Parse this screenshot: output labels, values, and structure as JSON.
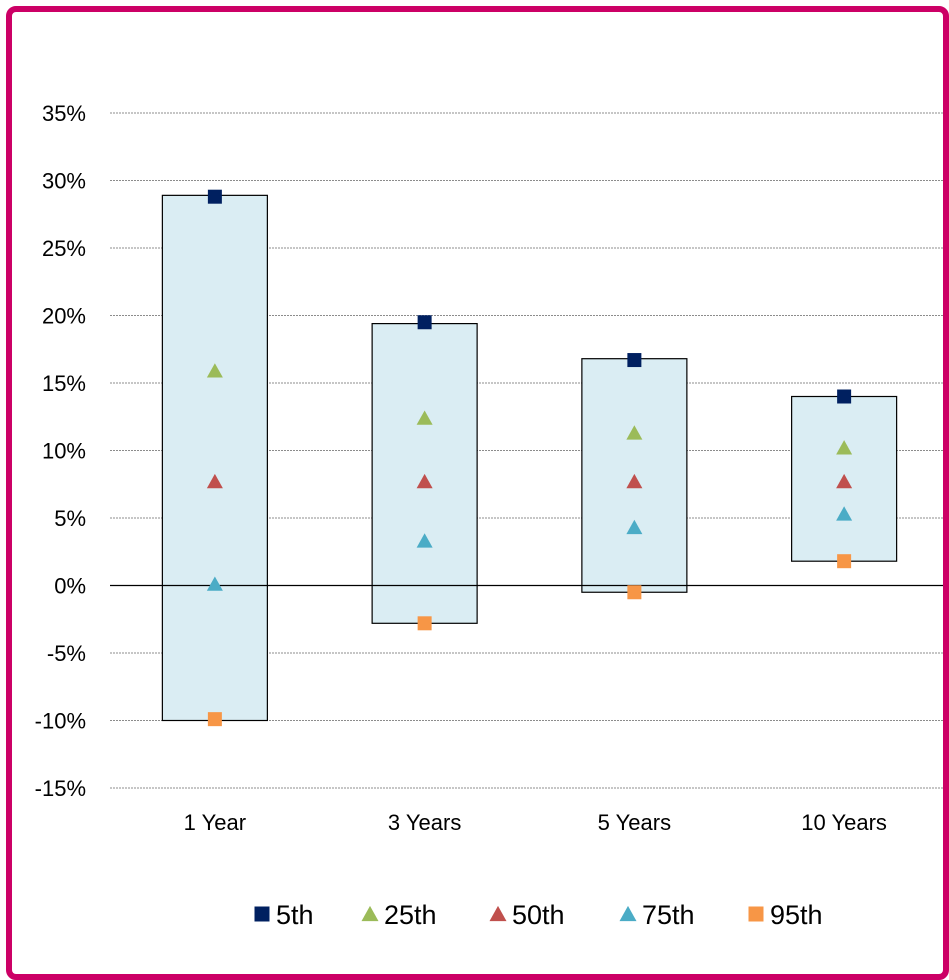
{
  "chart_data": {
    "type": "range-bar",
    "categories": [
      "1 Year",
      "3 Years",
      "5 Years",
      "10 Years"
    ],
    "y_ticks": [
      "35%",
      "30%",
      "25%",
      "20%",
      "15%",
      "10%",
      "5%",
      "0%",
      "-5%",
      "-10%",
      "-15%"
    ],
    "ylim": [
      -15,
      35
    ],
    "grid": true,
    "legend_position": "bottom",
    "bar_fill": "#daedf3",
    "series": [
      {
        "name": "5th",
        "marker": "square",
        "color": "#002060",
        "values": [
          28.8,
          19.5,
          16.7,
          14.0
        ]
      },
      {
        "name": "25th",
        "marker": "triangle",
        "color": "#9bbb59",
        "values": [
          15.9,
          12.4,
          11.3,
          10.2
        ]
      },
      {
        "name": "50th",
        "marker": "triangle",
        "color": "#c0504d",
        "values": [
          7.7,
          7.7,
          7.7,
          7.7
        ]
      },
      {
        "name": "75th",
        "marker": "triangle",
        "color": "#4bacc6",
        "values": [
          0.1,
          3.3,
          4.3,
          5.3
        ]
      },
      {
        "name": "95th",
        "marker": "square",
        "color": "#f79646",
        "values": [
          -9.9,
          -2.8,
          -0.5,
          1.8
        ]
      }
    ],
    "ranges": [
      {
        "high": 28.9,
        "low": -10.0
      },
      {
        "high": 19.4,
        "low": -2.8
      },
      {
        "high": 16.8,
        "low": -0.5
      },
      {
        "high": 14.0,
        "low": 1.8
      }
    ]
  }
}
